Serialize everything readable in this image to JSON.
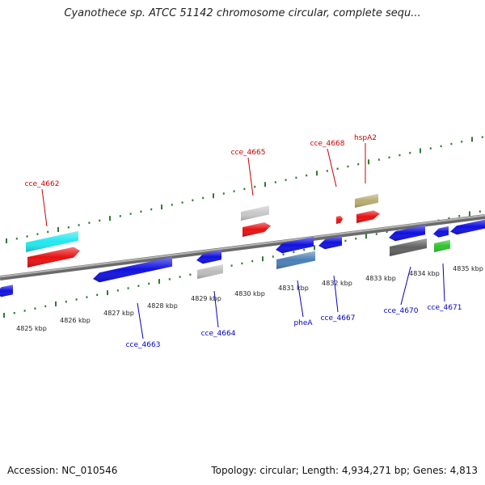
{
  "title": "Cyanothece sp. ATCC 51142 chromosome circular, complete sequ...",
  "footer": {
    "accession": "Accession: NC_010546",
    "summary": "Topology: circular; Length: 4,934,271 bp; Genes: 4,813"
  },
  "colors": {
    "label_top": "#cc0000",
    "label_bottom": "#0000cc",
    "tick": "#2e7d2e",
    "backbone": "#8c8c8c"
  },
  "kbp_labels": [
    "4825 kbp",
    "4826 kbp",
    "4827 kbp",
    "4828 kbp",
    "4829 kbp",
    "4830 kbp",
    "4831 kbp",
    "4832 kbp",
    "4833 kbp",
    "4834 kbp",
    "4835 kbp"
  ],
  "gene_labels_top": [
    "cce_4662",
    "cce_4665",
    "cce_4668",
    "hspA2"
  ],
  "gene_labels_bottom": [
    "cce_4663",
    "cce_4664",
    "pheA",
    "cce_4667",
    "cce_4670",
    "cce_4671"
  ]
}
